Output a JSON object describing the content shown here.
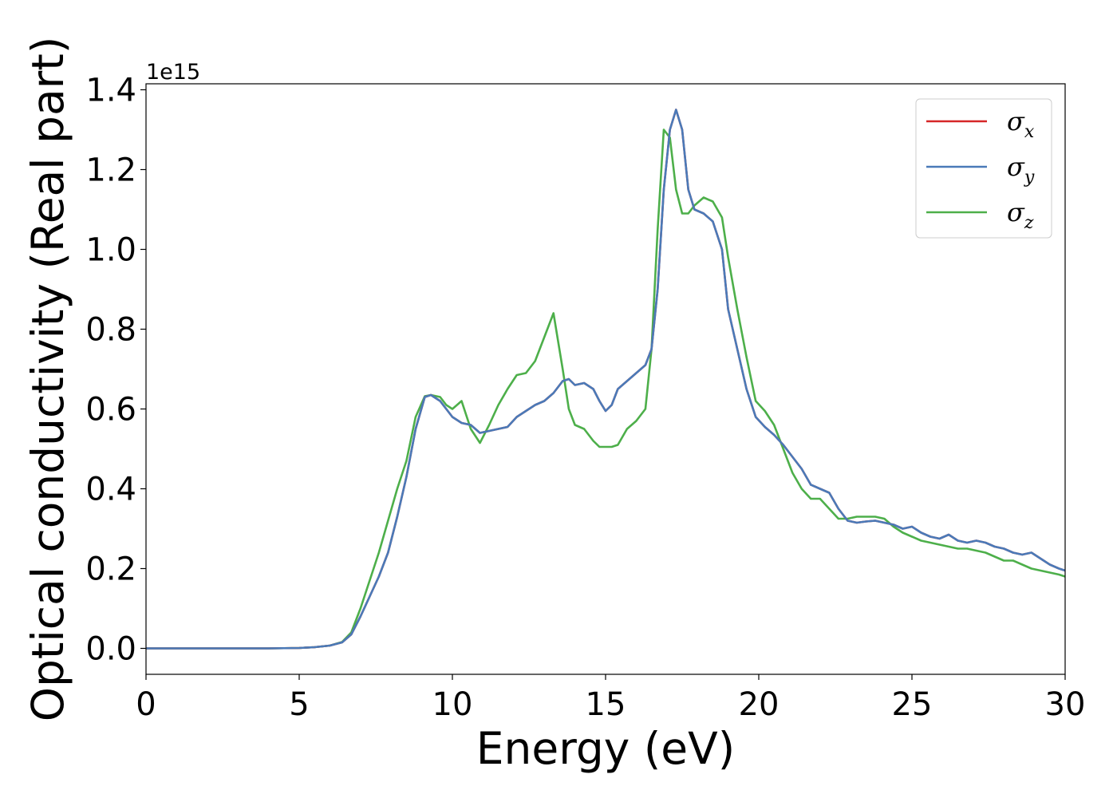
{
  "chart_data": {
    "type": "line",
    "xlabel": "Energy (eV)",
    "ylabel": "Optical conductivity (Real part)",
    "y_offset_label": "1e15",
    "xlim": [
      0,
      30
    ],
    "ylim": [
      -0.065,
      1.415
    ],
    "x_ticks": [
      0,
      5,
      10,
      15,
      20,
      25,
      30
    ],
    "x_tick_labels": [
      "0",
      "5",
      "10",
      "15",
      "20",
      "25",
      "30"
    ],
    "y_ticks": [
      0.0,
      0.2,
      0.4,
      0.6,
      0.8,
      1.0,
      1.2,
      1.4
    ],
    "y_tick_labels": [
      "0.0",
      "0.2",
      "0.4",
      "0.6",
      "0.8",
      "1.0",
      "1.2",
      "1.4"
    ],
    "grid": false,
    "legend_position": "top-right",
    "series": [
      {
        "name": "σx",
        "legend_symbol": "σ",
        "legend_subscript": "x",
        "color": "#d62728",
        "x": [
          0,
          2,
          4,
          5,
          5.5,
          6,
          6.4,
          6.7,
          7,
          7.3,
          7.6,
          7.9,
          8.2,
          8.5,
          8.8,
          9.1,
          9.3,
          9.6,
          9.8,
          10,
          10.3,
          10.6,
          10.9,
          11.2,
          11.5,
          11.8,
          12.1,
          12.4,
          12.7,
          13,
          13.3,
          13.6,
          13.8,
          14,
          14.3,
          14.6,
          14.8,
          15,
          15.2,
          15.4,
          15.7,
          16,
          16.3,
          16.5,
          16.7,
          16.9,
          17.1,
          17.3,
          17.5,
          17.7,
          17.9,
          18.2,
          18.5,
          18.8,
          19,
          19.3,
          19.6,
          19.9,
          20.2,
          20.5,
          20.8,
          21.1,
          21.4,
          21.7,
          22,
          22.3,
          22.6,
          22.9,
          23.2,
          23.5,
          23.8,
          24.1,
          24.4,
          24.7,
          25,
          25.3,
          25.6,
          25.9,
          26.2,
          26.5,
          26.8,
          27.1,
          27.4,
          27.7,
          28,
          28.3,
          28.6,
          28.9,
          29.2,
          29.5,
          29.8,
          30
        ],
        "y": [
          0,
          0,
          0,
          0.001,
          0.003,
          0.007,
          0.015,
          0.035,
          0.08,
          0.13,
          0.18,
          0.24,
          0.33,
          0.43,
          0.55,
          0.63,
          0.635,
          0.62,
          0.6,
          0.58,
          0.565,
          0.56,
          0.54,
          0.545,
          0.55,
          0.555,
          0.58,
          0.595,
          0.61,
          0.62,
          0.64,
          0.67,
          0.675,
          0.66,
          0.665,
          0.65,
          0.62,
          0.595,
          0.61,
          0.65,
          0.67,
          0.69,
          0.71,
          0.75,
          0.9,
          1.15,
          1.3,
          1.35,
          1.3,
          1.15,
          1.1,
          1.09,
          1.07,
          1.0,
          0.85,
          0.75,
          0.65,
          0.58,
          0.555,
          0.535,
          0.51,
          0.48,
          0.45,
          0.41,
          0.4,
          0.39,
          0.35,
          0.32,
          0.315,
          0.318,
          0.32,
          0.315,
          0.31,
          0.3,
          0.305,
          0.29,
          0.28,
          0.275,
          0.285,
          0.27,
          0.265,
          0.27,
          0.265,
          0.255,
          0.25,
          0.24,
          0.235,
          0.24,
          0.225,
          0.21,
          0.2,
          0.195
        ]
      },
      {
        "name": "σy",
        "legend_symbol": "σ",
        "legend_subscript": "y",
        "color": "#4a7ab8",
        "x": [
          0,
          2,
          4,
          5,
          5.5,
          6,
          6.4,
          6.7,
          7,
          7.3,
          7.6,
          7.9,
          8.2,
          8.5,
          8.8,
          9.1,
          9.3,
          9.6,
          9.8,
          10,
          10.3,
          10.6,
          10.9,
          11.2,
          11.5,
          11.8,
          12.1,
          12.4,
          12.7,
          13,
          13.3,
          13.6,
          13.8,
          14,
          14.3,
          14.6,
          14.8,
          15,
          15.2,
          15.4,
          15.7,
          16,
          16.3,
          16.5,
          16.7,
          16.9,
          17.1,
          17.3,
          17.5,
          17.7,
          17.9,
          18.2,
          18.5,
          18.8,
          19,
          19.3,
          19.6,
          19.9,
          20.2,
          20.5,
          20.8,
          21.1,
          21.4,
          21.7,
          22,
          22.3,
          22.6,
          22.9,
          23.2,
          23.5,
          23.8,
          24.1,
          24.4,
          24.7,
          25,
          25.3,
          25.6,
          25.9,
          26.2,
          26.5,
          26.8,
          27.1,
          27.4,
          27.7,
          28,
          28.3,
          28.6,
          28.9,
          29.2,
          29.5,
          29.8,
          30
        ],
        "y": [
          0,
          0,
          0,
          0.001,
          0.003,
          0.007,
          0.015,
          0.035,
          0.08,
          0.13,
          0.18,
          0.24,
          0.33,
          0.43,
          0.55,
          0.63,
          0.635,
          0.62,
          0.6,
          0.58,
          0.565,
          0.56,
          0.54,
          0.545,
          0.55,
          0.555,
          0.58,
          0.595,
          0.61,
          0.62,
          0.64,
          0.67,
          0.675,
          0.66,
          0.665,
          0.65,
          0.62,
          0.595,
          0.61,
          0.65,
          0.67,
          0.69,
          0.71,
          0.75,
          0.9,
          1.15,
          1.3,
          1.35,
          1.3,
          1.15,
          1.1,
          1.09,
          1.07,
          1.0,
          0.85,
          0.75,
          0.65,
          0.58,
          0.555,
          0.535,
          0.51,
          0.48,
          0.45,
          0.41,
          0.4,
          0.39,
          0.35,
          0.32,
          0.315,
          0.318,
          0.32,
          0.315,
          0.31,
          0.3,
          0.305,
          0.29,
          0.28,
          0.275,
          0.285,
          0.27,
          0.265,
          0.27,
          0.265,
          0.255,
          0.25,
          0.24,
          0.235,
          0.24,
          0.225,
          0.21,
          0.2,
          0.195
        ]
      },
      {
        "name": "σz",
        "legend_symbol": "σ",
        "legend_subscript": "z",
        "color": "#4daf4a",
        "x": [
          0,
          2,
          4,
          5,
          5.5,
          6,
          6.4,
          6.7,
          7,
          7.3,
          7.6,
          7.9,
          8.2,
          8.5,
          8.8,
          9.1,
          9.3,
          9.6,
          9.8,
          10,
          10.3,
          10.6,
          10.9,
          11.2,
          11.5,
          11.8,
          12.1,
          12.4,
          12.7,
          13,
          13.3,
          13.6,
          13.8,
          14,
          14.3,
          14.6,
          14.8,
          15,
          15.2,
          15.4,
          15.7,
          16,
          16.3,
          16.5,
          16.7,
          16.9,
          17.1,
          17.3,
          17.5,
          17.7,
          17.9,
          18.2,
          18.5,
          18.8,
          19,
          19.3,
          19.6,
          19.9,
          20.2,
          20.5,
          20.8,
          21.1,
          21.4,
          21.7,
          22,
          22.3,
          22.6,
          22.9,
          23.2,
          23.5,
          23.8,
          24.1,
          24.4,
          24.7,
          25,
          25.3,
          25.6,
          25.9,
          26.2,
          26.5,
          26.8,
          27.1,
          27.4,
          27.7,
          28,
          28.3,
          28.6,
          28.9,
          29.2,
          29.5,
          29.8,
          30
        ],
        "y": [
          0,
          0,
          0,
          0.001,
          0.003,
          0.007,
          0.016,
          0.04,
          0.1,
          0.17,
          0.24,
          0.32,
          0.4,
          0.47,
          0.58,
          0.632,
          0.635,
          0.63,
          0.61,
          0.6,
          0.62,
          0.55,
          0.515,
          0.56,
          0.61,
          0.65,
          0.685,
          0.69,
          0.72,
          0.78,
          0.84,
          0.7,
          0.6,
          0.56,
          0.55,
          0.52,
          0.505,
          0.505,
          0.505,
          0.51,
          0.55,
          0.57,
          0.6,
          0.75,
          1.05,
          1.3,
          1.28,
          1.15,
          1.09,
          1.09,
          1.11,
          1.13,
          1.12,
          1.08,
          0.98,
          0.85,
          0.73,
          0.62,
          0.595,
          0.56,
          0.5,
          0.44,
          0.4,
          0.375,
          0.375,
          0.35,
          0.325,
          0.325,
          0.33,
          0.33,
          0.33,
          0.325,
          0.305,
          0.29,
          0.28,
          0.27,
          0.265,
          0.26,
          0.255,
          0.25,
          0.25,
          0.245,
          0.24,
          0.23,
          0.22,
          0.22,
          0.21,
          0.2,
          0.195,
          0.19,
          0.185,
          0.18
        ]
      }
    ]
  }
}
